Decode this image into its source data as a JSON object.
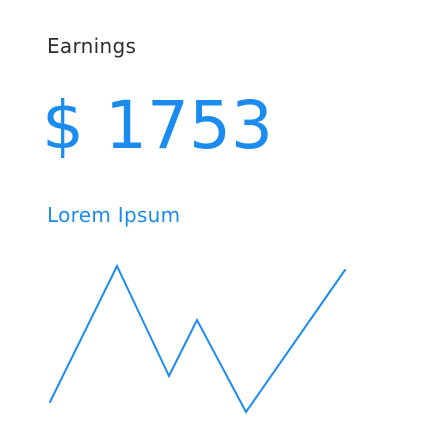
{
  "widget": {
    "title": "Earnings",
    "amount": "$ 1753",
    "subtitle": "Lorem Ipsum",
    "accent_color": "#1a8cf0",
    "title_color": "#2f2f2f"
  }
}
